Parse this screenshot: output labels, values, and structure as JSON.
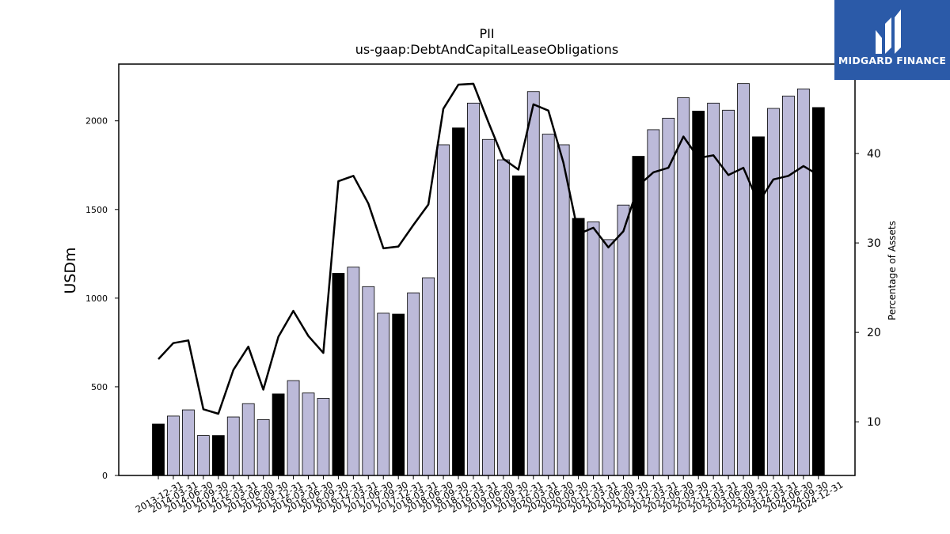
{
  "brand": {
    "name": "MIDGARD FINANCE",
    "bg_color": "#2b5aa8",
    "icon": "midgard-m-logo-icon"
  },
  "chart_data": {
    "type": "bar",
    "title": "PII",
    "subtitle": "us-gaap:DebtAndCapitalLeaseObligations",
    "ylabel": "USDm",
    "y2label": "Percentage of Assets",
    "ylim": [
      0,
      2320
    ],
    "y2lim": [
      4,
      50
    ],
    "yticks": [
      0,
      500,
      1000,
      1500,
      2000
    ],
    "y2ticks": [
      10,
      20,
      30,
      40
    ],
    "colors": {
      "q4_bar": "#000000",
      "other_bar": "#bcbad9",
      "line": "#000000"
    },
    "categories": [
      "2013-12-31",
      "2014-03-31",
      "2014-06-30",
      "2014-09-30",
      "2014-12-31",
      "2015-03-31",
      "2015-06-30",
      "2015-09-30",
      "2015-12-31",
      "2016-03-31",
      "2016-06-30",
      "2016-09-30",
      "2016-12-31",
      "2017-03-31",
      "2017-06-30",
      "2017-09-30",
      "2017-12-31",
      "2018-03-31",
      "2018-06-30",
      "2018-09-30",
      "2018-12-31",
      "2019-03-31",
      "2019-06-30",
      "2019-09-30",
      "2019-12-31",
      "2020-03-31",
      "2020-06-30",
      "2020-09-30",
      "2020-12-31",
      "2021-03-31",
      "2021-06-30",
      "2021-09-30",
      "2021-12-31",
      "2022-03-31",
      "2022-06-30",
      "2022-09-30",
      "2022-12-31",
      "2023-03-31",
      "2023-06-30",
      "2023-09-30",
      "2023-12-31",
      "2024-03-31",
      "2024-06-30",
      "2024-09-30",
      "2024-12-31"
    ],
    "series": [
      {
        "kind": "bar",
        "values": [
          290,
          335,
          370,
          225,
          225,
          330,
          405,
          315,
          460,
          535,
          465,
          435,
          1140,
          1175,
          1065,
          915,
          910,
          1030,
          1115,
          1865,
          1960,
          2100,
          1895,
          1780,
          1690,
          2165,
          1925,
          1865,
          1450,
          1430,
          1330,
          1525,
          1800,
          1950,
          2015,
          2130,
          2055,
          2100,
          2060,
          2210,
          1910,
          2070,
          2140,
          2180,
          2075
        ]
      },
      {
        "kind": "line",
        "axis": "y2",
        "values": [
          17.0,
          18.8,
          19.1,
          11.4,
          10.9,
          15.8,
          18.4,
          13.6,
          19.5,
          22.4,
          19.6,
          17.7,
          36.9,
          37.5,
          34.4,
          29.4,
          29.6,
          32.0,
          34.3,
          45.0,
          47.7,
          47.8,
          43.5,
          39.4,
          38.2,
          45.5,
          44.8,
          39.0,
          31.0,
          31.7,
          29.5,
          31.3,
          36.4,
          37.9,
          38.4,
          41.9,
          39.5,
          39.8,
          37.6,
          38.4,
          34.5,
          37.1,
          37.5,
          38.6,
          37.6
        ]
      }
    ]
  }
}
